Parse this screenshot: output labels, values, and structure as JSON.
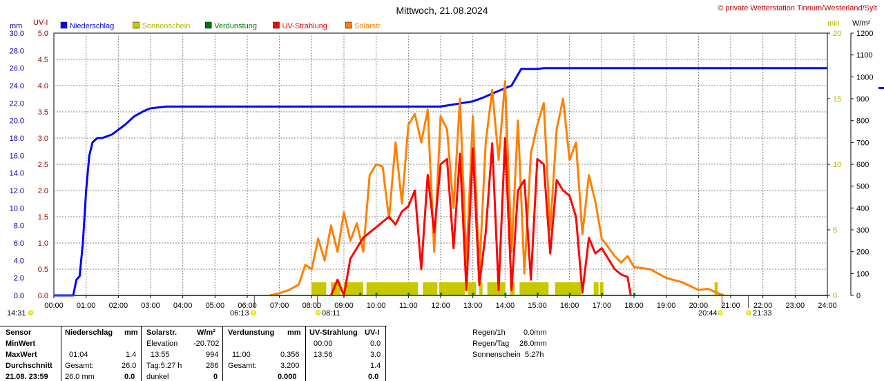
{
  "title": "Mittwoch, 21.08.2024",
  "copyright": "© private Wetterstation Tinnum/Westerland/Sylt",
  "axis_units": {
    "left_mm": "mm",
    "left_uv": "UV-I",
    "right_min": "min",
    "right_wm2": "W/m²"
  },
  "legend": [
    {
      "name": "Niederschlag",
      "color": "#0000ff",
      "text_color": "#0000ff"
    },
    {
      "name": "Sonnenschein",
      "color": "#c8c800",
      "text_color": "#b4b400"
    },
    {
      "name": "Verdunstung",
      "color": "#007a00",
      "text_color": "#007a00"
    },
    {
      "name": "UV-Strahlung",
      "color": "#ff0000",
      "text_color": "#ff0000"
    },
    {
      "name": "Solarstr.",
      "color": "#ff8000",
      "text_color": "#ff8000"
    }
  ],
  "sun_markers": [
    {
      "label": "14:31"
    },
    {
      "label": "06:13"
    },
    {
      "label": "08:11"
    },
    {
      "label": "20:44"
    },
    {
      "label": "21:33"
    }
  ],
  "chart_data": {
    "type": "line",
    "x_ticks": [
      "00:00",
      "01:00",
      "02:00",
      "03:00",
      "04:00",
      "05:00",
      "06:00",
      "07:00",
      "08:00",
      "09:00",
      "10:00",
      "11:00",
      "12:00",
      "13:00",
      "14:00",
      "15:00",
      "16:00",
      "17:00",
      "18:00",
      "19:00",
      "20:00",
      "21:00",
      "22:00",
      "23:00",
      "24:00"
    ],
    "xlim": [
      0,
      24
    ],
    "axes": {
      "mm": {
        "ylim": [
          0,
          30
        ],
        "ticks": [
          "0.0",
          "2.0",
          "4.0",
          "6.0",
          "8.0",
          "10.0",
          "12.0",
          "14.0",
          "16.0",
          "18.0",
          "20.0",
          "22.0",
          "24.0",
          "26.0",
          "28.0",
          "30.0"
        ],
        "color": "#0000a0"
      },
      "uv": {
        "ylim": [
          0,
          5
        ],
        "ticks": [
          "0.0",
          "0.5",
          "1.0",
          "1.5",
          "2.0",
          "2.5",
          "3.0",
          "3.5",
          "4.0",
          "4.5",
          "5.0"
        ],
        "color": "#a00000"
      },
      "min": {
        "ylim": [
          0,
          20
        ],
        "ticks": [
          "0",
          "5",
          "10",
          "15",
          "20"
        ],
        "color": "#b4b400"
      },
      "wm2": {
        "ylim": [
          0,
          1200
        ],
        "ticks": [
          "0",
          "100",
          "200",
          "300",
          "400",
          "500",
          "600",
          "700",
          "800",
          "900",
          "1000",
          "1100",
          "1200"
        ],
        "color": "#000000"
      }
    },
    "series": [
      {
        "name": "Niederschlag",
        "axis": "mm",
        "color": "#0000ff",
        "x": [
          0,
          0.6,
          0.7,
          0.8,
          0.9,
          1.0,
          1.1,
          1.2,
          1.35,
          1.5,
          1.8,
          2.2,
          2.5,
          2.8,
          3.0,
          3.5,
          5,
          8,
          10,
          12,
          13.0,
          13.3,
          13.8,
          14.2,
          14.5,
          15.0,
          15.2,
          16,
          20,
          24
        ],
        "values": [
          0,
          0,
          1.8,
          2.2,
          6,
          12,
          16,
          17.5,
          18,
          18.0,
          18.4,
          19.5,
          20.5,
          21.1,
          21.4,
          21.6,
          21.6,
          21.6,
          21.6,
          21.6,
          22.2,
          22.6,
          23.4,
          24.0,
          25.9,
          25.9,
          26.0,
          26.0,
          26.0,
          26.0
        ]
      },
      {
        "name": "Solarstr.",
        "axis": "wm2",
        "color": "#ff8000",
        "x": [
          6.7,
          7.0,
          7.3,
          7.6,
          7.8,
          8.0,
          8.2,
          8.4,
          8.6,
          8.8,
          9.0,
          9.2,
          9.4,
          9.6,
          9.8,
          10.0,
          10.2,
          10.4,
          10.6,
          10.8,
          11.0,
          11.2,
          11.4,
          11.6,
          11.8,
          12.0,
          12.2,
          12.4,
          12.6,
          12.8,
          13.0,
          13.2,
          13.4,
          13.6,
          13.8,
          14.0,
          14.2,
          14.4,
          14.6,
          14.8,
          15.0,
          15.2,
          15.4,
          15.6,
          15.8,
          16.0,
          16.2,
          16.4,
          16.6,
          16.8,
          17.0,
          17.2,
          17.4,
          17.6,
          17.8,
          18.0,
          18.5,
          19.0,
          19.5,
          20.0,
          20.3,
          20.6,
          20.8
        ],
        "values": [
          0,
          10,
          25,
          50,
          140,
          120,
          260,
          160,
          320,
          200,
          380,
          250,
          330,
          200,
          550,
          600,
          590,
          350,
          700,
          420,
          780,
          830,
          700,
          850,
          200,
          820,
          760,
          400,
          900,
          150,
          820,
          100,
          700,
          940,
          620,
          980,
          200,
          800,
          100,
          650,
          780,
          880,
          300,
          760,
          900,
          620,
          700,
          280,
          550,
          430,
          260,
          220,
          180,
          150,
          180,
          130,
          120,
          80,
          60,
          25,
          30,
          10,
          0
        ]
      },
      {
        "name": "UV-Strahlung",
        "axis": "uv",
        "color": "#ff0000",
        "x": [
          8.6,
          8.8,
          9.0,
          9.2,
          9.4,
          9.6,
          9.8,
          10.0,
          10.2,
          10.4,
          10.6,
          10.8,
          11.0,
          11.2,
          11.4,
          11.6,
          11.8,
          12.0,
          12.2,
          12.4,
          12.6,
          12.8,
          13.0,
          13.2,
          13.4,
          13.6,
          13.8,
          14.0,
          14.2,
          14.4,
          14.6,
          14.8,
          15.0,
          15.2,
          15.4,
          15.6,
          15.8,
          16.0,
          16.2,
          16.4,
          16.6,
          16.8,
          17.0,
          17.2,
          17.4,
          17.6,
          17.8,
          17.9
        ],
        "values": [
          0,
          0.3,
          0,
          0.7,
          0.9,
          1.1,
          1.2,
          1.3,
          1.4,
          1.5,
          1.35,
          1.6,
          1.7,
          2.0,
          0.5,
          2.3,
          1.2,
          2.5,
          2.6,
          0.9,
          2.7,
          0.1,
          2.8,
          0.2,
          1.2,
          2.9,
          0.1,
          3.0,
          0.1,
          2.0,
          2.2,
          0.3,
          2.6,
          2.5,
          0.8,
          2.2,
          2.0,
          1.9,
          1.5,
          0.05,
          1.1,
          0.8,
          0.9,
          0.7,
          0.5,
          0.4,
          0.35,
          0
        ]
      },
      {
        "name": "Sonnenschein",
        "axis": "min",
        "color": "#c8c800",
        "bars": [
          [
            8.0,
            8.45
          ],
          [
            8.6,
            8.9
          ],
          [
            9.0,
            9.6
          ],
          [
            9.7,
            10.0
          ],
          [
            10.0,
            11.3
          ],
          [
            11.45,
            11.9
          ],
          [
            11.95,
            12.75
          ],
          [
            12.85,
            13.1
          ],
          [
            13.2,
            13.3
          ],
          [
            13.45,
            14.0
          ],
          [
            14.15,
            14.3
          ],
          [
            14.45,
            15.35
          ],
          [
            15.55,
            16.35
          ],
          [
            16.75,
            16.9
          ],
          [
            16.95,
            17.05
          ],
          [
            20.5,
            20.6
          ]
        ],
        "value": 1
      },
      {
        "name": "Verdunstung",
        "axis": "mm",
        "color": "#007a00",
        "x": [
          0,
          24
        ],
        "values": [
          0,
          0
        ]
      }
    ]
  },
  "table": {
    "col1": {
      "header": "Sensor",
      "rows": [
        "MinWert",
        "MaxWert",
        "Durchschnitt",
        "21.08. 23:59"
      ]
    },
    "niederschlag": {
      "header": "Niederschlag",
      "unit": "mm",
      "max_time": "01:04",
      "max_value": "1.4",
      "gesamt_label": "Gesamt:",
      "gesamt_value": "26.0",
      "last_label": "26.0 mm",
      "last_value": "0.0"
    },
    "solar": {
      "header": "Solarstr.",
      "unit": "W/m²",
      "min_label": "Elevation",
      "min_value": "-20.702",
      "max_time": "13:55",
      "max_value": "994",
      "avg_label": "Tag:5:27 h",
      "avg_value": "286",
      "last_label": "dunkel",
      "last_value": "0"
    },
    "verdunstung": {
      "header": "Verdunstung",
      "unit": "mm",
      "max_time": "11:00",
      "max_value": "0.356",
      "gesamt_label": "Gesamt:",
      "gesamt_value": "3.200",
      "last_value": "0.000"
    },
    "uv": {
      "header": "UV-Strahlung",
      "unit": "UV-I",
      "min_time": "00:00",
      "min_value": "0.0",
      "max_time": "13:56",
      "max_value": "3.0",
      "avg_value": "1.4",
      "last_value": "0.0"
    },
    "side": [
      {
        "label": "Regen/1h",
        "value": "0.0mm"
      },
      {
        "label": "Regen/Tag",
        "value": "26.0mm"
      },
      {
        "label": "Sonnenschein",
        "value": "5:27h"
      }
    ]
  }
}
